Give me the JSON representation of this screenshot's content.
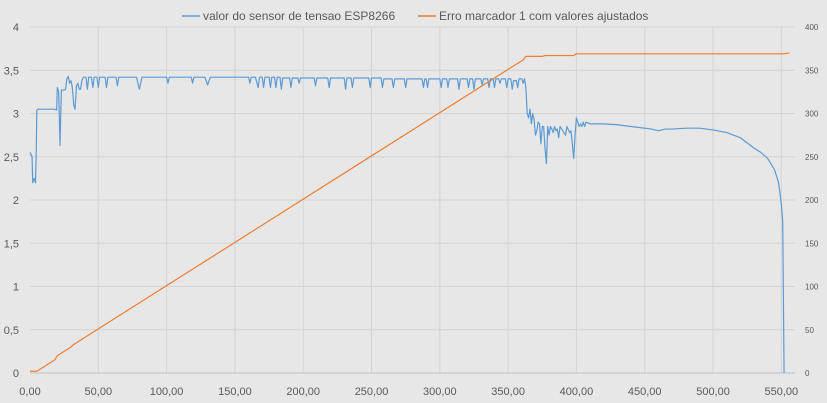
{
  "chart_data": {
    "type": "line",
    "title": "",
    "xlabel": "",
    "ylabel": "",
    "grid": true,
    "legend_position": "top",
    "xlim": [
      0,
      560
    ],
    "ylim_left": [
      0,
      4
    ],
    "ylim_right": [
      0,
      400
    ],
    "x_ticks": [
      "0,00",
      "50,00",
      "100,00",
      "150,00",
      "200,00",
      "250,00",
      "300,00",
      "350,00",
      "400,00",
      "450,00",
      "500,00",
      "550,00"
    ],
    "x_tick_values": [
      0,
      50,
      100,
      150,
      200,
      250,
      300,
      350,
      400,
      450,
      500,
      550
    ],
    "y_left_ticks": [
      "0",
      "0,5",
      "1",
      "1,5",
      "2",
      "2,5",
      "3",
      "3,5",
      "4"
    ],
    "y_left_tick_values": [
      0,
      0.5,
      1,
      1.5,
      2,
      2.5,
      3,
      3.5,
      4
    ],
    "y_right_ticks": [
      "0",
      "50",
      "100",
      "150",
      "200",
      "250",
      "300",
      "350",
      "400"
    ],
    "y_right_tick_values": [
      0,
      50,
      100,
      150,
      200,
      250,
      300,
      350,
      400
    ],
    "series": [
      {
        "name": "valor do sensor de tensao ESP8266",
        "axis": "left",
        "color": "#5b9bd5",
        "points": [
          [
            0,
            2.55
          ],
          [
            1.5,
            2.5
          ],
          [
            2,
            2.2
          ],
          [
            3,
            2.25
          ],
          [
            4,
            2.2
          ],
          [
            4.5,
            2.5
          ],
          [
            5,
            3.04
          ],
          [
            6,
            3.05
          ],
          [
            8,
            3.05
          ],
          [
            12,
            3.05
          ],
          [
            15,
            3.05
          ],
          [
            18,
            3.05
          ],
          [
            19.5,
            3.04
          ],
          [
            20,
            3.3
          ],
          [
            21,
            3.25
          ],
          [
            22,
            2.63
          ],
          [
            22.5,
            3.0
          ],
          [
            23,
            3.27
          ],
          [
            25,
            3.27
          ],
          [
            26,
            3.28
          ],
          [
            27,
            3.4
          ],
          [
            28,
            3.43
          ],
          [
            29,
            3.35
          ],
          [
            30,
            3.38
          ],
          [
            31,
            3.3
          ],
          [
            32,
            3.1
          ],
          [
            33,
            3.05
          ],
          [
            34,
            3.32
          ],
          [
            35,
            3.35
          ],
          [
            36,
            3.28
          ],
          [
            37,
            3.28
          ],
          [
            38,
            3.38
          ],
          [
            39,
            3.42
          ],
          [
            41,
            3.42
          ],
          [
            42,
            3.28
          ],
          [
            43,
            3.42
          ],
          [
            45,
            3.42
          ],
          [
            46,
            3.3
          ],
          [
            47,
            3.42
          ],
          [
            49,
            3.42
          ],
          [
            50,
            3.3
          ],
          [
            51,
            3.42
          ],
          [
            55,
            3.42
          ],
          [
            56,
            3.3
          ],
          [
            57,
            3.42
          ],
          [
            63,
            3.42
          ],
          [
            64,
            3.32
          ],
          [
            65,
            3.42
          ],
          [
            78,
            3.42
          ],
          [
            80,
            3.28
          ],
          [
            82,
            3.42
          ],
          [
            100,
            3.42
          ],
          [
            101,
            3.35
          ],
          [
            102,
            3.42
          ],
          [
            118,
            3.42
          ],
          [
            119,
            3.35
          ],
          [
            120,
            3.42
          ],
          [
            128,
            3.42
          ],
          [
            130,
            3.33
          ],
          [
            132,
            3.42
          ],
          [
            160,
            3.42
          ],
          [
            161,
            3.35
          ],
          [
            162,
            3.42
          ],
          [
            165,
            3.42
          ],
          [
            167,
            3.3
          ],
          [
            168,
            3.42
          ],
          [
            170,
            3.42
          ],
          [
            171,
            3.3
          ],
          [
            172,
            3.42
          ],
          [
            175,
            3.42
          ],
          [
            176,
            3.3
          ],
          [
            177,
            3.42
          ],
          [
            179,
            3.42
          ],
          [
            180,
            3.3
          ],
          [
            181,
            3.42
          ],
          [
            183,
            3.42
          ],
          [
            184,
            3.28
          ],
          [
            185,
            3.41
          ],
          [
            190,
            3.41
          ],
          [
            191,
            3.3
          ],
          [
            192,
            3.41
          ],
          [
            196,
            3.41
          ],
          [
            197,
            3.35
          ],
          [
            198,
            3.41
          ],
          [
            208,
            3.41
          ],
          [
            209,
            3.32
          ],
          [
            210,
            3.41
          ],
          [
            218,
            3.41
          ],
          [
            219,
            3.3
          ],
          [
            220,
            3.41
          ],
          [
            230,
            3.41
          ],
          [
            231,
            3.28
          ],
          [
            232,
            3.41
          ],
          [
            235,
            3.41
          ],
          [
            236,
            3.3
          ],
          [
            237,
            3.41
          ],
          [
            248,
            3.41
          ],
          [
            249,
            3.3
          ],
          [
            250,
            3.41
          ],
          [
            257,
            3.41
          ],
          [
            258,
            3.3
          ],
          [
            259,
            3.4
          ],
          [
            265,
            3.4
          ],
          [
            266,
            3.3
          ],
          [
            267,
            3.4
          ],
          [
            274,
            3.4
          ],
          [
            275,
            3.3
          ],
          [
            276,
            3.4
          ],
          [
            287,
            3.4
          ],
          [
            288,
            3.3
          ],
          [
            289,
            3.4
          ],
          [
            290,
            3.4
          ],
          [
            291,
            3.3
          ],
          [
            292,
            3.4
          ],
          [
            300,
            3.4
          ],
          [
            301,
            3.3
          ],
          [
            302,
            3.4
          ],
          [
            305,
            3.4
          ],
          [
            306,
            3.3
          ],
          [
            307,
            3.4
          ],
          [
            313,
            3.4
          ],
          [
            314,
            3.28
          ],
          [
            315,
            3.4
          ],
          [
            320,
            3.4
          ],
          [
            321,
            3.3
          ],
          [
            322,
            3.4
          ],
          [
            324,
            3.4
          ],
          [
            325,
            3.28
          ],
          [
            326,
            3.4
          ],
          [
            330,
            3.4
          ],
          [
            331,
            3.33
          ],
          [
            332,
            3.4
          ],
          [
            335,
            3.4
          ],
          [
            336,
            3.3
          ],
          [
            337,
            3.4
          ],
          [
            339,
            3.4
          ],
          [
            340,
            3.3
          ],
          [
            341,
            3.4
          ],
          [
            343,
            3.4
          ],
          [
            344,
            3.35
          ],
          [
            345,
            3.4
          ],
          [
            348,
            3.4
          ],
          [
            349,
            3.3
          ],
          [
            350,
            3.4
          ],
          [
            352,
            3.4
          ],
          [
            353,
            3.28
          ],
          [
            354,
            3.38
          ],
          [
            356,
            3.38
          ],
          [
            357,
            3.3
          ],
          [
            358,
            3.4
          ],
          [
            360,
            3.4
          ],
          [
            361,
            3.35
          ],
          [
            362,
            3.4
          ],
          [
            363,
            3.3
          ],
          [
            364,
            3.0
          ],
          [
            365,
            2.95
          ],
          [
            366,
            3.05
          ],
          [
            367,
            2.88
          ],
          [
            368,
            3.0
          ],
          [
            369,
            2.93
          ],
          [
            370,
            2.75
          ],
          [
            371,
            2.8
          ],
          [
            372,
            2.9
          ],
          [
            373,
            2.88
          ],
          [
            374,
            2.65
          ],
          [
            375,
            2.85
          ],
          [
            376,
            2.85
          ],
          [
            377,
            2.6
          ],
          [
            378,
            2.42
          ],
          [
            379,
            2.85
          ],
          [
            380,
            2.75
          ],
          [
            381,
            2.85
          ],
          [
            382,
            2.82
          ],
          [
            383,
            2.78
          ],
          [
            384,
            2.85
          ],
          [
            385,
            2.8
          ],
          [
            386,
            2.82
          ],
          [
            387,
            2.72
          ],
          [
            388,
            2.85
          ],
          [
            390,
            2.8
          ],
          [
            392,
            2.75
          ],
          [
            393,
            2.85
          ],
          [
            395,
            2.78
          ],
          [
            396,
            2.8
          ],
          [
            397,
            2.65
          ],
          [
            398,
            2.48
          ],
          [
            399,
            2.75
          ],
          [
            400,
            2.95
          ],
          [
            401,
            2.9
          ],
          [
            402,
            2.85
          ],
          [
            403,
            2.88
          ],
          [
            404,
            2.85
          ],
          [
            405,
            2.9
          ],
          [
            406,
            2.85
          ],
          [
            407,
            2.9
          ],
          [
            410,
            2.88
          ],
          [
            420,
            2.88
          ],
          [
            430,
            2.87
          ],
          [
            440,
            2.85
          ],
          [
            450,
            2.83
          ],
          [
            455,
            2.82
          ],
          [
            460,
            2.8
          ],
          [
            465,
            2.82
          ],
          [
            470,
            2.82
          ],
          [
            480,
            2.83
          ],
          [
            490,
            2.83
          ],
          [
            500,
            2.81
          ],
          [
            510,
            2.78
          ],
          [
            520,
            2.72
          ],
          [
            530,
            2.6
          ],
          [
            535,
            2.55
          ],
          [
            540,
            2.48
          ],
          [
            545,
            2.35
          ],
          [
            548,
            2.2
          ],
          [
            550,
            1.95
          ],
          [
            551,
            1.75
          ],
          [
            552,
            0
          ]
        ]
      },
      {
        "name": "Erro marcador 1 com valores ajustados",
        "axis": "right",
        "color": "#ed7d31",
        "points": [
          [
            0,
            2
          ],
          [
            5,
            2
          ],
          [
            18,
            15
          ],
          [
            20,
            20
          ],
          [
            21,
            21
          ],
          [
            25,
            25
          ],
          [
            30,
            30
          ],
          [
            32,
            33
          ],
          [
            35,
            36
          ],
          [
            361,
            362
          ],
          [
            363,
            366
          ],
          [
            375,
            366
          ],
          [
            377,
            367
          ],
          [
            398,
            367
          ],
          [
            400,
            369
          ],
          [
            552,
            369
          ],
          [
            556,
            370
          ]
        ]
      }
    ]
  }
}
